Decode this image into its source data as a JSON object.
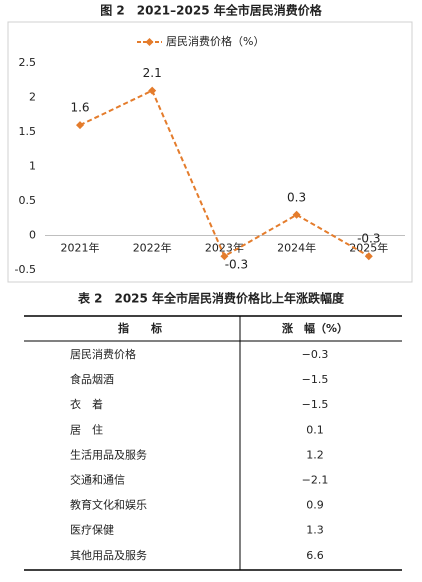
{
  "chart_data": {
    "type": "line",
    "title": "图 2　2021–2025 年全市居民消费价格",
    "categories": [
      "2021年",
      "2022年",
      "2023年",
      "2024年",
      "2025年"
    ],
    "series": [
      {
        "name": "居民消费价格（%）",
        "color": "#e47c2c",
        "values": [
          1.6,
          2.1,
          -0.3,
          0.3,
          -0.3
        ]
      }
    ],
    "ylim": [
      -0.5,
      2.5
    ],
    "yticks": [
      -0.5,
      0,
      0.5,
      1,
      1.5,
      2,
      2.5
    ],
    "legend": "top"
  },
  "table": {
    "title": "表 2　2025 年全市居民消费价格比上年涨跌幅度",
    "header": [
      "指　　标",
      "涨　幅（%）"
    ],
    "rows": [
      [
        "居民消费价格",
        "−0.3"
      ],
      [
        "食品烟酒",
        "−1.5"
      ],
      [
        "衣　着",
        "−1.5"
      ],
      [
        "居　住",
        "0.1"
      ],
      [
        "生活用品及服务",
        "1.2"
      ],
      [
        "交通和通信",
        "−2.1"
      ],
      [
        "教育文化和娱乐",
        "0.9"
      ],
      [
        "医疗保健",
        "1.3"
      ],
      [
        "其他用品及服务",
        "6.6"
      ]
    ]
  }
}
